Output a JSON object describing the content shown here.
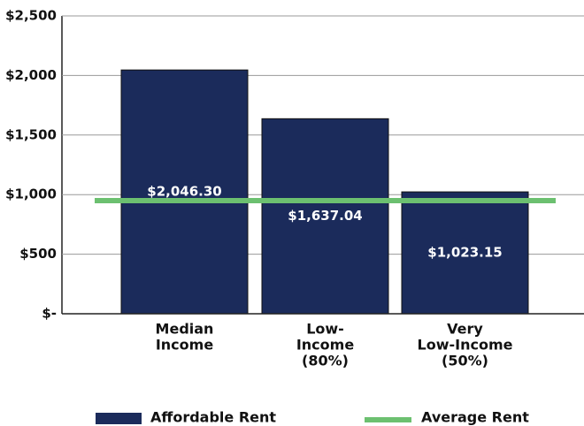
{
  "chart_data": {
    "type": "bar",
    "categories": [
      [
        "Median",
        "Income"
      ],
      [
        "Low-",
        "Income",
        "(80%)"
      ],
      [
        "Very",
        "Low-Income",
        "(50%)"
      ]
    ],
    "series": [
      {
        "name": "Affordable Rent",
        "color": "#1b2b5b",
        "values": [
          2046.3,
          1637.04,
          1023.15
        ],
        "value_labels": [
          "$2,046.30",
          "$1,637.04",
          "$1,023.15"
        ]
      }
    ],
    "reference_line": {
      "name": "Average Rent",
      "color": "#6cc070",
      "value": 950
    },
    "ylim": [
      0,
      2500
    ],
    "yticks": [
      {
        "value": 0,
        "label": "$-"
      },
      {
        "value": 500,
        "label": "$500"
      },
      {
        "value": 1000,
        "label": "$1,000"
      },
      {
        "value": 1500,
        "label": "$1,500"
      },
      {
        "value": 2000,
        "label": "$2,000"
      },
      {
        "value": 2500,
        "label": "$2,500"
      }
    ],
    "grid": true
  }
}
